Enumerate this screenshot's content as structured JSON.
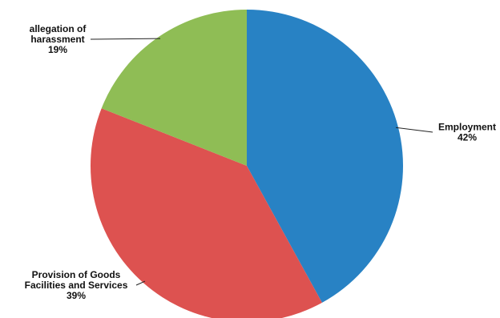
{
  "chart_data": {
    "type": "pie",
    "title": "",
    "slices": [
      {
        "lines": [
          "Employment"
        ],
        "value": 42,
        "value_label": "42%",
        "color": "#2882c4"
      },
      {
        "lines": [
          "Provision of Goods",
          "Facilities and Services"
        ],
        "value": 39,
        "value_label": "39%",
        "color": "#dd5250"
      },
      {
        "lines": [
          "allegation of",
          "harassment"
        ],
        "value": 19,
        "value_label": "19%",
        "color": "#8fbd55"
      }
    ],
    "start_angle_deg": 0,
    "direction": "clockwise"
  }
}
